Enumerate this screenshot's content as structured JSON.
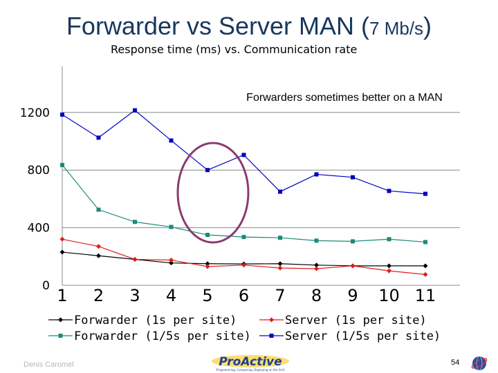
{
  "slide": {
    "title_main": "Forwarder vs Server  MAN (",
    "title_unit": "7 Mb/s",
    "title_close": ")",
    "subtitle": "Response time (ms) vs. Communication rate",
    "author": "Denis Caromel",
    "page_number": "54",
    "logo_text": "ProActive",
    "logo_tagline": "Programming, Composing, Deploying on the Grid"
  },
  "chart_data": {
    "type": "line",
    "annotation": "Forwarders sometimes better on a MAN",
    "categories": [
      "1",
      "2",
      "3",
      "4",
      "5",
      "6",
      "7",
      "8",
      "9",
      "10",
      "11"
    ],
    "yticks": [
      "0",
      "400",
      "800",
      "1200"
    ],
    "ylim": [
      0,
      1450
    ],
    "grid": "horizontal",
    "legend_position": "bottom",
    "series": [
      {
        "name": "Forwarder (1s per site)",
        "color": "#000000",
        "marker": "diamond",
        "values": [
          230,
          205,
          180,
          155,
          150,
          148,
          150,
          140,
          135,
          135,
          135
        ]
      },
      {
        "name": "Forwarder (1/5s per site)",
        "color": "#1a8a7a",
        "marker": "square",
        "values": [
          835,
          525,
          440,
          405,
          350,
          335,
          330,
          310,
          305,
          320,
          300
        ]
      },
      {
        "name": "Server (1s per site)",
        "color": "#e31a1c",
        "marker": "diamond",
        "values": [
          320,
          270,
          180,
          175,
          130,
          140,
          120,
          115,
          135,
          100,
          75
        ]
      },
      {
        "name": "Server (1/5s per site)",
        "color": "#0000c0",
        "marker": "square",
        "values": [
          1185,
          1025,
          1215,
          1005,
          800,
          905,
          650,
          770,
          750,
          655,
          635
        ]
      }
    ]
  }
}
